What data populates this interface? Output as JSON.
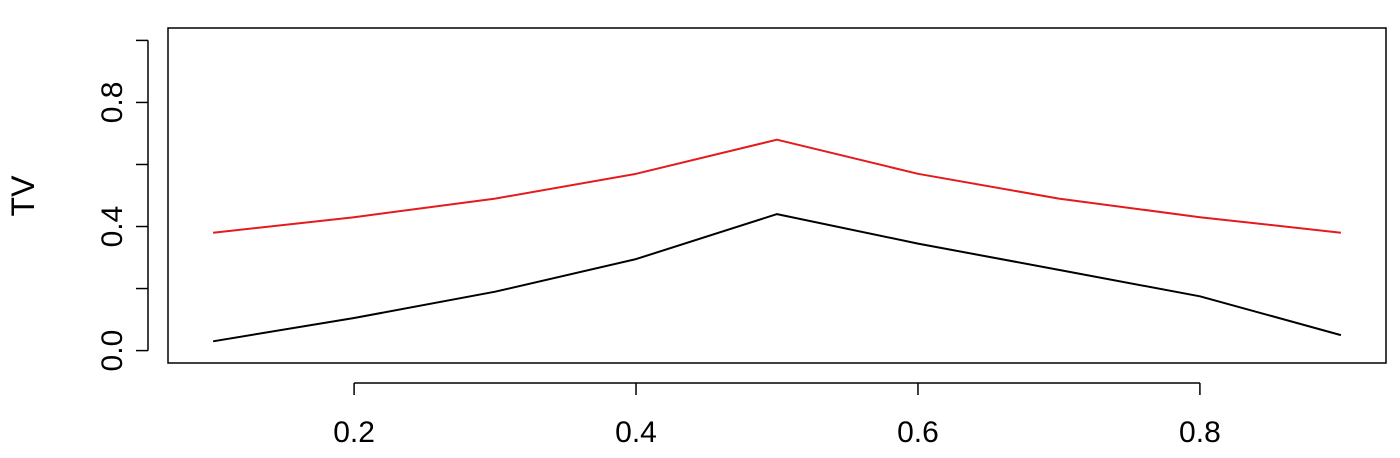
{
  "chart_data": {
    "type": "line",
    "title": "",
    "xlabel": "",
    "ylabel": "TV",
    "xlim": [
      0.068,
      0.932
    ],
    "ylim": [
      -0.04,
      1.04
    ],
    "x_ticks": [
      0.2,
      0.4,
      0.6,
      0.8
    ],
    "x_tick_labels": [
      "0.2",
      "0.4",
      "0.6",
      "0.8"
    ],
    "y_ticks": [
      0.0,
      0.2,
      0.4,
      0.6,
      0.8,
      1.0
    ],
    "y_tick_labels": [
      "0.0",
      "",
      "0.4",
      "",
      "0.8",
      ""
    ],
    "grid": false,
    "x": [
      0.1,
      0.2,
      0.3,
      0.4,
      0.5,
      0.6,
      0.7,
      0.8,
      0.9
    ],
    "series": [
      {
        "color": "#000000",
        "values": [
          0.03,
          0.105,
          0.19,
          0.295,
          0.44,
          0.345,
          0.26,
          0.175,
          0.05
        ]
      },
      {
        "color": "#e41a1c",
        "values": [
          0.38,
          0.43,
          0.49,
          0.57,
          0.68,
          0.57,
          0.49,
          0.43,
          0.38
        ]
      }
    ]
  }
}
